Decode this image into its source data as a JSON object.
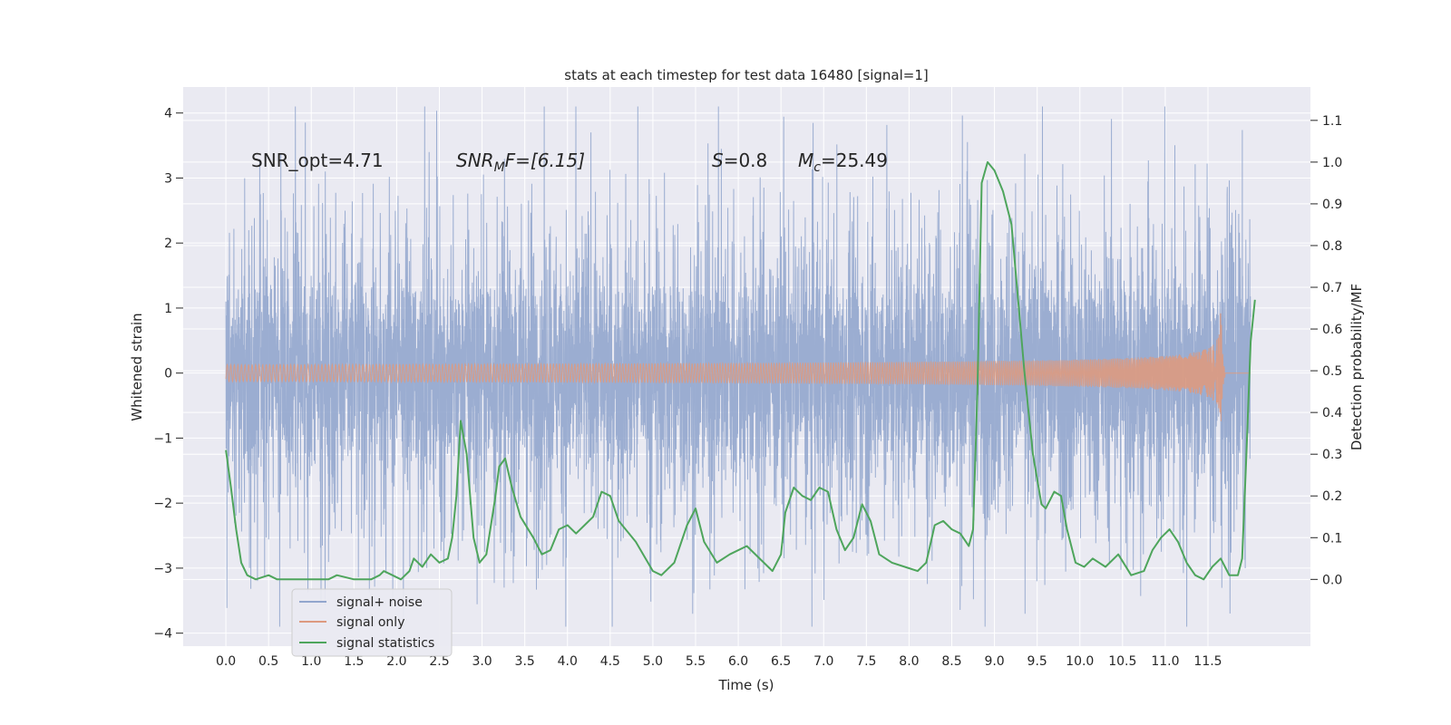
{
  "chart_data": {
    "type": "line",
    "title": "stats at each timestep for test data 16480 [signal=1]",
    "xlabel": "Time (s)",
    "ylabel": "Whitened strain",
    "y2label": "Detection probability/MF",
    "xlim": [
      -0.5,
      12.7
    ],
    "ylim": [
      -4.2,
      4.4
    ],
    "y2lim": [
      -0.16,
      1.18
    ],
    "x_ticks": [
      "0.0",
      "0.5",
      "1.0",
      "1.5",
      "2.0",
      "2.5",
      "3.0",
      "3.5",
      "4.0",
      "4.5",
      "5.0",
      "5.5",
      "6.0",
      "6.5",
      "7.0",
      "7.5",
      "8.0",
      "8.5",
      "9.0",
      "9.5",
      "10.0",
      "10.5",
      "11.0",
      "11.5"
    ],
    "y_ticks": [
      "4",
      "3",
      "2",
      "1",
      "0",
      "−1",
      "−2",
      "−3",
      "−4"
    ],
    "y2_ticks": [
      "1.1",
      "1.0",
      "0.9",
      "0.8",
      "0.7",
      "0.6",
      "0.5",
      "0.4",
      "0.3",
      "0.2",
      "0.1",
      "0.0"
    ],
    "grid": true,
    "legend_position": "lower-left",
    "annotations": [
      {
        "text": "SNR_opt=4.71"
      },
      {
        "base": "SNR",
        "sub": "M",
        "rest": "F=[6.15]"
      },
      {
        "base": "S",
        "rest": "=0.8"
      },
      {
        "base": "M",
        "sub": "c",
        "rest": "=25.49"
      }
    ],
    "series": [
      {
        "name": "signal+ noise",
        "color": "#92a6cd",
        "axis": "left",
        "note": "dense noise trace, core amplitude about ±1.35, occasional spikes from about −3.9 to 4.1",
        "duration": 12.0
      },
      {
        "name": "signal only",
        "color": "#dd9a80",
        "axis": "left",
        "note": "chirp with amplitude rising to about 1.0 at merger near t=11.65 s",
        "peak_time": 11.65,
        "peak_amp": 1.0
      },
      {
        "name": "signal statistics",
        "color": "#4ea55c",
        "axis": "right",
        "points": [
          [
            0.0,
            0.31
          ],
          [
            0.06,
            0.22
          ],
          [
            0.12,
            0.12
          ],
          [
            0.18,
            0.04
          ],
          [
            0.25,
            0.01
          ],
          [
            0.35,
            0.0
          ],
          [
            0.5,
            0.01
          ],
          [
            0.6,
            0.0
          ],
          [
            0.7,
            0.0
          ],
          [
            0.8,
            0.0
          ],
          [
            1.0,
            0.0
          ],
          [
            1.2,
            0.0
          ],
          [
            1.3,
            0.01
          ],
          [
            1.5,
            0.0
          ],
          [
            1.7,
            0.0
          ],
          [
            1.8,
            0.01
          ],
          [
            1.85,
            0.02
          ],
          [
            1.95,
            0.01
          ],
          [
            2.05,
            0.0
          ],
          [
            2.15,
            0.02
          ],
          [
            2.2,
            0.05
          ],
          [
            2.3,
            0.03
          ],
          [
            2.4,
            0.06
          ],
          [
            2.5,
            0.04
          ],
          [
            2.6,
            0.05
          ],
          [
            2.65,
            0.1
          ],
          [
            2.7,
            0.2
          ],
          [
            2.75,
            0.38
          ],
          [
            2.82,
            0.3
          ],
          [
            2.9,
            0.1
          ],
          [
            2.97,
            0.04
          ],
          [
            3.05,
            0.06
          ],
          [
            3.15,
            0.19
          ],
          [
            3.2,
            0.27
          ],
          [
            3.27,
            0.29
          ],
          [
            3.35,
            0.22
          ],
          [
            3.45,
            0.15
          ],
          [
            3.6,
            0.1
          ],
          [
            3.7,
            0.06
          ],
          [
            3.8,
            0.07
          ],
          [
            3.9,
            0.12
          ],
          [
            4.0,
            0.13
          ],
          [
            4.1,
            0.11
          ],
          [
            4.2,
            0.13
          ],
          [
            4.3,
            0.15
          ],
          [
            4.4,
            0.21
          ],
          [
            4.5,
            0.2
          ],
          [
            4.6,
            0.14
          ],
          [
            4.8,
            0.09
          ],
          [
            5.0,
            0.02
          ],
          [
            5.1,
            0.01
          ],
          [
            5.25,
            0.04
          ],
          [
            5.4,
            0.13
          ],
          [
            5.5,
            0.17
          ],
          [
            5.6,
            0.09
          ],
          [
            5.75,
            0.04
          ],
          [
            5.9,
            0.06
          ],
          [
            6.1,
            0.08
          ],
          [
            6.3,
            0.04
          ],
          [
            6.4,
            0.02
          ],
          [
            6.5,
            0.06
          ],
          [
            6.55,
            0.16
          ],
          [
            6.65,
            0.22
          ],
          [
            6.75,
            0.2
          ],
          [
            6.85,
            0.19
          ],
          [
            6.95,
            0.22
          ],
          [
            7.05,
            0.21
          ],
          [
            7.15,
            0.12
          ],
          [
            7.25,
            0.07
          ],
          [
            7.35,
            0.1
          ],
          [
            7.45,
            0.18
          ],
          [
            7.55,
            0.14
          ],
          [
            7.65,
            0.06
          ],
          [
            7.8,
            0.04
          ],
          [
            7.95,
            0.03
          ],
          [
            8.1,
            0.02
          ],
          [
            8.2,
            0.04
          ],
          [
            8.3,
            0.13
          ],
          [
            8.4,
            0.14
          ],
          [
            8.5,
            0.12
          ],
          [
            8.6,
            0.11
          ],
          [
            8.7,
            0.08
          ],
          [
            8.75,
            0.12
          ],
          [
            8.8,
            0.45
          ],
          [
            8.85,
            0.95
          ],
          [
            8.92,
            1.0
          ],
          [
            9.0,
            0.98
          ],
          [
            9.1,
            0.93
          ],
          [
            9.2,
            0.85
          ],
          [
            9.35,
            0.5
          ],
          [
            9.45,
            0.3
          ],
          [
            9.55,
            0.18
          ],
          [
            9.6,
            0.17
          ],
          [
            9.7,
            0.21
          ],
          [
            9.78,
            0.2
          ],
          [
            9.85,
            0.12
          ],
          [
            9.95,
            0.04
          ],
          [
            10.05,
            0.03
          ],
          [
            10.15,
            0.05
          ],
          [
            10.3,
            0.03
          ],
          [
            10.45,
            0.06
          ],
          [
            10.6,
            0.01
          ],
          [
            10.75,
            0.02
          ],
          [
            10.85,
            0.07
          ],
          [
            10.95,
            0.1
          ],
          [
            11.05,
            0.12
          ],
          [
            11.15,
            0.09
          ],
          [
            11.25,
            0.04
          ],
          [
            11.35,
            0.01
          ],
          [
            11.45,
            0.0
          ],
          [
            11.55,
            0.03
          ],
          [
            11.65,
            0.05
          ],
          [
            11.75,
            0.01
          ],
          [
            11.85,
            0.01
          ],
          [
            11.9,
            0.05
          ],
          [
            11.95,
            0.3
          ],
          [
            12.0,
            0.57
          ],
          [
            12.05,
            0.67
          ]
        ]
      }
    ]
  }
}
